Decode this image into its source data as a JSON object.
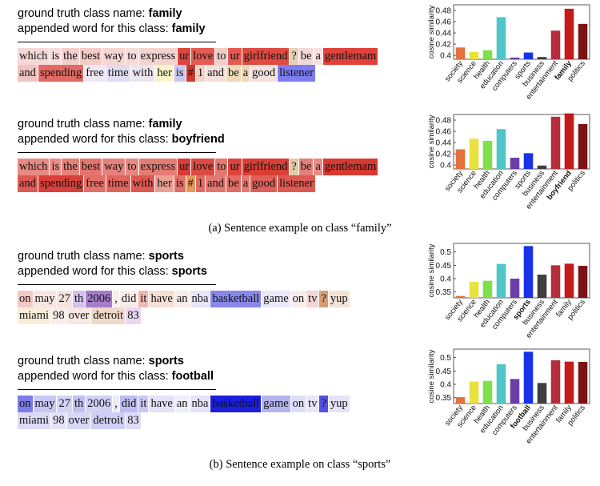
{
  "captions": {
    "a": "(a) Sentence example on class “family”",
    "b": "(b) Sentence example on class “sports”"
  },
  "panels": [
    {
      "gt_label": "ground truth class name:",
      "gt_class": "family",
      "ap_label": "appended word for this class:",
      "ap_word": "family",
      "lines": [
        [
          {
            "t": "which",
            "c": "#f5d8d8"
          },
          {
            "t": "is",
            "c": "#f7dcd9"
          },
          {
            "t": "the",
            "c": "#f2cfcb"
          },
          {
            "t": "best",
            "c": "#f4cbc6"
          },
          {
            "t": "way",
            "c": "#f5d6d2"
          },
          {
            "t": "to",
            "c": "#f6dbd7"
          },
          {
            "t": "express",
            "c": "#f3d3cf"
          },
          {
            "t": "ur",
            "c": "#e0453c"
          },
          {
            "t": "love",
            "c": "#e55b52"
          },
          {
            "t": "to",
            "c": "#f3cdc8"
          },
          {
            "t": "ur",
            "c": "#e45a52"
          },
          {
            "t": "girlfriend",
            "c": "#e04a40"
          },
          {
            "t": "?",
            "c": "#e7d0b5"
          },
          {
            "t": "be",
            "c": "#f3d9d6"
          },
          {
            "t": "a",
            "c": "#f7e1de"
          },
          {
            "t": "gentlemam",
            "c": "#e0413a"
          }
        ],
        [
          {
            "t": "and",
            "c": "#f0c4bf"
          },
          {
            "t": "spending",
            "c": "#e16b64"
          },
          {
            "t": "free",
            "c": "#efe8f3"
          },
          {
            "t": "time",
            "c": "#dfdcf3"
          },
          {
            "t": "with",
            "c": "#ede5ee"
          },
          {
            "t": "her",
            "c": "#fbf5c8"
          },
          {
            "t": "is",
            "c": "#c9c6f3"
          },
          {
            "t": "#",
            "c": "#c93a30"
          },
          {
            "t": "1",
            "c": "#efd2c6"
          },
          {
            "t": "and",
            "c": "#f2e0dd"
          },
          {
            "t": "be",
            "c": "#f0d9b9"
          },
          {
            "t": "a",
            "c": "#eed6b8"
          },
          {
            "t": "good",
            "c": "#f3e1dc"
          },
          {
            "t": "listener",
            "c": "#7d7cf0"
          }
        ]
      ]
    },
    {
      "gt_label": "ground truth class name:",
      "gt_class": "family",
      "ap_label": "appended word for this class:",
      "ap_word": "boyfriend",
      "lines": [
        [
          {
            "t": "which",
            "c": "#e88a83"
          },
          {
            "t": "is",
            "c": "#e98d86"
          },
          {
            "t": "the",
            "c": "#e68179"
          },
          {
            "t": "best",
            "c": "#e4756e"
          },
          {
            "t": "way",
            "c": "#e6827b"
          },
          {
            "t": "to",
            "c": "#e8877f"
          },
          {
            "t": "express",
            "c": "#e47c74"
          },
          {
            "t": "ur",
            "c": "#d93a32"
          },
          {
            "t": "love",
            "c": "#dc4a42"
          },
          {
            "t": "to",
            "c": "#e4776f"
          },
          {
            "t": "ur",
            "c": "#da443c"
          },
          {
            "t": "girlfriend",
            "c": "#d93f36"
          },
          {
            "t": "?",
            "c": "#e6c9a6"
          },
          {
            "t": "be",
            "c": "#e58079"
          },
          {
            "t": "a",
            "c": "#e98c85"
          },
          {
            "t": "gentlemam",
            "c": "#d83a31"
          }
        ],
        [
          {
            "t": "and",
            "c": "#dd5a52"
          },
          {
            "t": "spending",
            "c": "#d9403a"
          },
          {
            "t": "free",
            "c": "#e27068"
          },
          {
            "t": "time",
            "c": "#e0655d"
          },
          {
            "t": "with",
            "c": "#dd5951"
          },
          {
            "t": "her",
            "c": "#e9a092"
          },
          {
            "t": "is",
            "c": "#e07068"
          },
          {
            "t": "#",
            "c": "#e79a5a"
          },
          {
            "t": "1",
            "c": "#e06b63"
          },
          {
            "t": "and",
            "c": "#e27770"
          },
          {
            "t": "be",
            "c": "#e16d65"
          },
          {
            "t": "a",
            "c": "#e27a72"
          },
          {
            "t": "good",
            "c": "#de6058"
          },
          {
            "t": "listener",
            "c": "#dd5a52"
          }
        ]
      ]
    },
    {
      "gt_label": "ground truth class name:",
      "gt_class": "sports",
      "ap_label": "appended word for this class:",
      "ap_word": "sports",
      "lines": [
        [
          {
            "t": "on",
            "c": "#f3c8c6"
          },
          {
            "t": "may",
            "c": "#f8e6e4"
          },
          {
            "t": "27",
            "c": "#f7e2df"
          },
          {
            "t": "th",
            "c": "#d2c3ea"
          },
          {
            "t": "2006",
            "c": "#a57dc8"
          },
          {
            "t": ",",
            "c": "#f9efee"
          },
          {
            "t": "did",
            "c": "#f8ebea"
          },
          {
            "t": "it",
            "c": "#f0b7b3"
          },
          {
            "t": "have",
            "c": "#f6dfd5"
          },
          {
            "t": "an",
            "c": "#f8ebe8"
          },
          {
            "t": "nba",
            "c": "#e6e4f8"
          },
          {
            "t": "basketball",
            "c": "#8988ea"
          },
          {
            "t": "game",
            "c": "#e9e7f9"
          },
          {
            "t": "on",
            "c": "#f8ecea"
          },
          {
            "t": "tv",
            "c": "#f4d6d4"
          },
          {
            "t": "?",
            "c": "#d59e73"
          },
          {
            "t": "yup",
            "c": "#f3e3d6"
          }
        ],
        [
          {
            "t": "miami",
            "c": "#f9eed9"
          },
          {
            "t": "98",
            "c": "#f8eded"
          },
          {
            "t": "over",
            "c": "#f5e7e3"
          },
          {
            "t": "detroit",
            "c": "#f0d9c9"
          },
          {
            "t": "83",
            "c": "#e9d8f1"
          }
        ]
      ]
    },
    {
      "gt_label": "ground truth class name:",
      "gt_class": "sports",
      "ap_label": "appended word for this class:",
      "ap_word": "football",
      "lines": [
        [
          {
            "t": "on",
            "c": "#7d7ce8"
          },
          {
            "t": "may",
            "c": "#c9c8f4"
          },
          {
            "t": "27",
            "c": "#d4d3f6"
          },
          {
            "t": "th",
            "c": "#c1c0f2"
          },
          {
            "t": "2006",
            "c": "#d2d1f5"
          },
          {
            "t": ",",
            "c": "#ecebfb"
          },
          {
            "t": "did",
            "c": "#bdbdf1"
          },
          {
            "t": "it",
            "c": "#c9c8f4"
          },
          {
            "t": "have",
            "c": "#e3e2f9"
          },
          {
            "t": "an",
            "c": "#efeefb"
          },
          {
            "t": "nba",
            "c": "#e4e3f9"
          },
          {
            "t": "basketball",
            "c": "#1c1ee0"
          },
          {
            "t": "game",
            "c": "#b4b4ef"
          },
          {
            "t": "on",
            "c": "#dfdef8"
          },
          {
            "t": "tv",
            "c": "#e8e7fa"
          },
          {
            "t": "?",
            "c": "#5352de"
          },
          {
            "t": "yup",
            "c": "#e3e2f9"
          }
        ],
        [
          {
            "t": "miami",
            "c": "#dcdbf7"
          },
          {
            "t": "98",
            "c": "#e3e2f9"
          },
          {
            "t": "over",
            "c": "#d8d7f7"
          },
          {
            "t": "detroit",
            "c": "#cfcef5"
          },
          {
            "t": "83",
            "c": "#dedcf8"
          }
        ]
      ]
    }
  ],
  "chart_data": [
    {
      "type": "bar",
      "ylabel": "cosine similarity",
      "ylim": [
        0.393,
        0.49
      ],
      "yticks": [
        0.4,
        0.42,
        0.44,
        0.46,
        0.48
      ],
      "categories": [
        "society",
        "science",
        "health",
        "education",
        "computers",
        "sports",
        "business",
        "entertainment",
        "family",
        "politics"
      ],
      "bold_category": "family",
      "values": [
        0.414,
        0.406,
        0.409,
        0.468,
        0.396,
        0.405,
        0.397,
        0.444,
        0.483,
        0.456
      ]
    },
    {
      "type": "bar",
      "ylabel": "cosine similarity",
      "ylim": [
        0.393,
        0.49
      ],
      "yticks": [
        0.4,
        0.42,
        0.44,
        0.46,
        0.48
      ],
      "categories": [
        "society",
        "science",
        "health",
        "education",
        "computers",
        "sports",
        "business",
        "entertainment",
        "boyfriend",
        "politics"
      ],
      "bold_category": "boyfriend",
      "values": [
        0.428,
        0.447,
        0.443,
        0.464,
        0.413,
        0.421,
        0.399,
        0.486,
        0.492,
        0.473
      ]
    },
    {
      "type": "bar",
      "ylabel": "cosine similarity",
      "ylim": [
        0.328,
        0.532
      ],
      "yticks": [
        0.35,
        0.4,
        0.45,
        0.5
      ],
      "categories": [
        "society",
        "science",
        "health",
        "education",
        "computers",
        "sports",
        "business",
        "entertainment",
        "family",
        "politics"
      ],
      "bold_category": "sports",
      "values": [
        0.335,
        0.388,
        0.392,
        0.455,
        0.4,
        0.522,
        0.415,
        0.45,
        0.456,
        0.448
      ]
    },
    {
      "type": "bar",
      "ylabel": "cosine similarity",
      "ylim": [
        0.328,
        0.532
      ],
      "yticks": [
        0.35,
        0.4,
        0.45,
        0.5
      ],
      "categories": [
        "society",
        "science",
        "health",
        "education",
        "computers",
        "football",
        "business",
        "entertainment",
        "family",
        "politics"
      ],
      "bold_category": "football",
      "values": [
        0.352,
        0.41,
        0.413,
        0.475,
        0.42,
        0.522,
        0.405,
        0.49,
        0.485,
        0.484
      ]
    }
  ],
  "bar_colors": [
    "#e3733e",
    "#e9e23e",
    "#7ee04a",
    "#4fc6c8",
    "#6b3fa6",
    "#1732e8",
    "#3f3f3f",
    "#b62d3c",
    "#c41a1a",
    "#7a1414"
  ]
}
